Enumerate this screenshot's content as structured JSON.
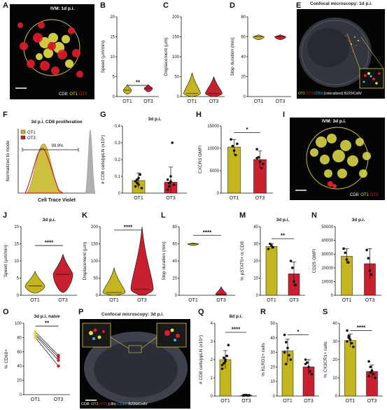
{
  "colors": {
    "ot1": "#c4b41d",
    "ot3": "#c8202f",
    "ot1_dot": "#d9d74a",
    "gray": "#b0b0b0"
  },
  "chart_data": [
    {
      "id": "B",
      "type": "violin",
      "panel": "B",
      "ylabel": "Speed (µm/min)",
      "yticks": [
        0,
        5,
        10,
        15,
        20
      ],
      "ylim": [
        0,
        20
      ],
      "categories": [
        "OT1",
        "OT3"
      ],
      "series": [
        {
          "name": "OT1",
          "center": 1.6,
          "spread": [
            0.6,
            3.0
          ]
        },
        {
          "name": "OT3",
          "center": 2.1,
          "spread": [
            1.2,
            3.0
          ]
        }
      ],
      "significance": "**"
    },
    {
      "id": "C",
      "type": "violin",
      "panel": "C",
      "ylabel": "Displacement (µm)",
      "yticks": [
        0,
        50,
        100,
        150,
        200
      ],
      "ylim": [
        0,
        200
      ],
      "categories": [
        "OT1",
        "OT3"
      ],
      "series": [
        {
          "name": "OT1",
          "center": 8,
          "spread": [
            0,
            60
          ]
        },
        {
          "name": "OT3",
          "center": 8,
          "spread": [
            0,
            50
          ]
        }
      ]
    },
    {
      "id": "D",
      "type": "violin",
      "panel": "D",
      "ylabel": "Stop duration (min)",
      "yticks": [
        0,
        20,
        40,
        60,
        80
      ],
      "ylim": [
        0,
        80
      ],
      "categories": [
        "OT1",
        "OT3"
      ],
      "series": [
        {
          "name": "OT1",
          "center": 60,
          "spread": [
            57,
            62
          ]
        },
        {
          "name": "OT3",
          "center": 60,
          "spread": [
            57,
            62
          ]
        }
      ]
    },
    {
      "id": "F",
      "type": "histogram",
      "panel": "F",
      "title": "3d p.i. CD8 proliferation",
      "xlabel": "Cell Trace Violet",
      "ylabel": "Normalized to mode",
      "legend": [
        "OT1",
        "OT3"
      ],
      "annotation": "99.9%"
    },
    {
      "id": "G",
      "type": "bar",
      "panel": "G",
      "title": "3d p.i.",
      "ylabel": "# CD8 cells/ppLN (x10⁴)",
      "yticks": [
        "0",
        "0,1",
        "0,2",
        "0,3",
        "0,4"
      ],
      "ylim": [
        0,
        0.4
      ],
      "categories": [
        "OT1",
        "OT3"
      ],
      "values": [
        0.075,
        0.065
      ],
      "errors": [
        0.045,
        0.09
      ],
      "points": [
        [
          0.04,
          0.06,
          0.09,
          0.11,
          0.03,
          0.07,
          0.08,
          0.05
        ],
        [
          0.02,
          0.06,
          0.1,
          0.3,
          0.05,
          0.08,
          0.04,
          0.07
        ]
      ]
    },
    {
      "id": "H",
      "type": "bar",
      "panel": "H",
      "ylabel": "CXCR3 GMFI",
      "yticks": [
        "0",
        "5000",
        "10000",
        "15000"
      ],
      "ylim": [
        0,
        15000
      ],
      "categories": [
        "OT1",
        "OT3"
      ],
      "values": [
        10300,
        7500
      ],
      "errors": [
        1700,
        1900
      ],
      "points": [
        [
          12000,
          10500,
          9500,
          8500,
          11000
        ],
        [
          9800,
          8000,
          7000,
          5600,
          6500,
          7800
        ]
      ],
      "significance": "*"
    },
    {
      "id": "J",
      "type": "violin",
      "panel": "J",
      "title": "3d p.i.",
      "ylabel": "Speed (µm/min)",
      "yticks": [
        0,
        5,
        10,
        15,
        20
      ],
      "ylim": [
        0,
        20
      ],
      "categories": [
        "OT1",
        "OT3"
      ],
      "series": [
        {
          "name": "OT1",
          "center": 2.7,
          "spread": [
            0.6,
            7
          ]
        },
        {
          "name": "OT3",
          "center": 6.1,
          "spread": [
            0.8,
            12
          ]
        }
      ],
      "significance": "****"
    },
    {
      "id": "K",
      "type": "violin",
      "panel": "K",
      "ylabel": "Displacement (µm)",
      "yticks": [
        0,
        50,
        100,
        150,
        200
      ],
      "ylim": [
        0,
        200
      ],
      "categories": [
        "OT1",
        "OT3"
      ],
      "series": [
        {
          "name": "OT1",
          "center": 8,
          "spread": [
            0,
            80
          ]
        },
        {
          "name": "OT3",
          "center": 18,
          "spread": [
            0,
            200
          ]
        }
      ],
      "significance": "****"
    },
    {
      "id": "L",
      "type": "violin",
      "panel": "L",
      "ylabel": "Stop duration (min)",
      "yticks": [
        0,
        20,
        40,
        60,
        80
      ],
      "ylim": [
        0,
        80
      ],
      "categories": [
        "OT1",
        "OT3"
      ],
      "series": [
        {
          "name": "OT1",
          "center": 60,
          "spread": [
            58,
            61
          ]
        },
        {
          "name": "OT3",
          "center": 1,
          "spread": [
            0,
            10
          ]
        }
      ],
      "significance": "****"
    },
    {
      "id": "M",
      "type": "bar",
      "panel": "M",
      "title": "3d p.i.",
      "ylabel": "% pSTAT5+ in CD8",
      "yticks": [
        "0",
        "10",
        "20",
        "30",
        "40"
      ],
      "ylim": [
        0,
        40
      ],
      "categories": [
        "OT1",
        "OT3"
      ],
      "values": [
        28.5,
        12.5
      ],
      "errors": [
        1.5,
        7
      ],
      "points": [
        [
          27,
          30,
          29,
          28
        ],
        [
          20,
          16,
          8,
          6
        ]
      ],
      "significance": "**"
    },
    {
      "id": "N",
      "type": "bar",
      "panel": "N",
      "title": "3d p.i.",
      "ylabel": "CD25 GMFI",
      "yticks": [
        "0",
        "10000",
        "20000",
        "30000",
        "40000",
        "50000"
      ],
      "ylim": [
        0,
        50000
      ],
      "categories": [
        "OT1",
        "OT3"
      ],
      "values": [
        28500,
        23000
      ],
      "errors": [
        5500,
        11000
      ],
      "points": [
        [
          34000,
          31000,
          26000,
          24000
        ],
        [
          33000,
          27000,
          18000,
          15000
        ]
      ]
    },
    {
      "id": "O",
      "type": "paired",
      "panel": "O",
      "title": "3d p.i. naive",
      "ylabel": "% CD69+",
      "yticks": [
        "0",
        "20",
        "40",
        "60",
        "80",
        "100"
      ],
      "ylim": [
        0,
        100
      ],
      "categories": [
        "OT1",
        "OT3"
      ],
      "pairs": [
        [
          88,
          55
        ],
        [
          85,
          52
        ],
        [
          83,
          48
        ],
        [
          80,
          40
        ]
      ],
      "significance": "**"
    },
    {
      "id": "Q",
      "type": "bar",
      "panel": "Q",
      "title": "8d p.i.",
      "ylabel": "# CD8 cells/ppLN (x10⁴)",
      "yticks": [
        "0",
        "1",
        "2",
        "3",
        "4"
      ],
      "ylim": [
        0,
        4
      ],
      "categories": [
        "OT1",
        "OT3"
      ],
      "values": [
        2.0,
        0.04
      ],
      "errors": [
        0.5,
        0.02
      ],
      "points": [
        [
          1.5,
          1.8,
          2.0,
          2.2,
          2.8,
          1.7,
          2.1,
          1.9
        ],
        [
          0.02,
          0.04,
          0.05,
          0.03,
          0.04,
          0.03,
          0.05,
          0.04
        ]
      ],
      "significance": "****"
    },
    {
      "id": "R",
      "type": "bar",
      "panel": "R",
      "ylabel": "% KLRG1+ cells",
      "yticks": [
        "0",
        "10",
        "20",
        "30",
        "40",
        "50"
      ],
      "ylim": [
        0,
        50
      ],
      "categories": [
        "OT1",
        "OT3"
      ],
      "values": [
        31,
        20
      ],
      "errors": [
        8,
        5
      ],
      "points": [
        [
          42,
          37,
          33,
          28,
          25,
          30,
          22
        ],
        [
          25,
          23,
          20,
          17,
          15,
          22
        ]
      ],
      "significance": "*"
    },
    {
      "id": "S",
      "type": "bar",
      "panel": "S",
      "ylabel": "% CX3CR1+ cells",
      "yticks": [
        "0",
        "10",
        "20",
        "30",
        "40"
      ],
      "ylim": [
        0,
        40
      ],
      "categories": [
        "OT1",
        "OT3"
      ],
      "values": [
        30.5,
        13.5
      ],
      "errors": [
        3.5,
        3.5
      ],
      "points": [
        [
          36,
          33,
          31,
          29,
          27,
          30,
          32
        ],
        [
          19,
          16,
          14,
          12,
          10,
          11,
          13
        ]
      ],
      "significance": "****"
    }
  ],
  "labels": {
    "A": "A",
    "B": "B",
    "C": "C",
    "D": "D",
    "E": "E",
    "F": "F",
    "G": "G",
    "H": "H",
    "I": "I",
    "J": "J",
    "K": "K",
    "L": "L",
    "M": "M",
    "N": "N",
    "O": "O",
    "P": "P",
    "Q": "Q",
    "R": "R",
    "S": "S"
  },
  "images": {
    "A": {
      "title": "IVM: 1d p.i.",
      "legend_cd8": "CD8:",
      "legend_ot1": "OT1",
      "legend_ot3": "OT3"
    },
    "E": {
      "title": "Confocal microscopy: 1d p.i.",
      "legend_ot1": "OT1",
      "legend_ot3": "OT3",
      "legend_cd69": "CD69",
      "legend_rest": "(colocalized) B220/CollV"
    },
    "I": {
      "title": "IVM: 3d p.i.",
      "legend_cd8": "CD8:",
      "legend_ot1": "OT1",
      "legend_ot3": "OT3"
    },
    "P": {
      "title": "Confocal microscopy: 3d p.i.",
      "legend_cd8": "CD8:",
      "legend_ot1": "OT1",
      "legend_ot3": "OT3",
      "legend_mid": "(-8h)",
      "legend_cd69": "CD69",
      "legend_rest": "B220/CollV"
    }
  }
}
